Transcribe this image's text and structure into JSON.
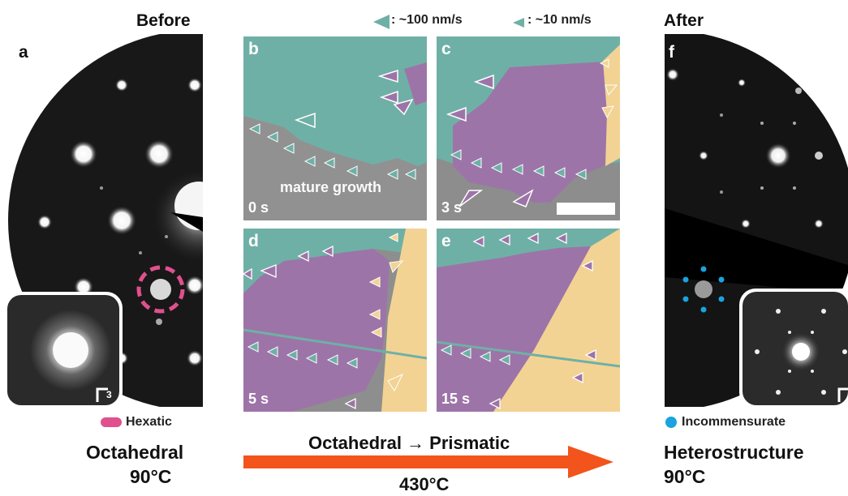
{
  "left": {
    "header": "Before",
    "panel_letter": "a",
    "legend_label": "Hexatic",
    "scale_label": "3",
    "phase": "Octahedral",
    "temperature": "90°C"
  },
  "right": {
    "header": "After",
    "panel_letter": "f",
    "legend_label": "Incommensurate",
    "phase": "Heterostructure",
    "temperature": "90°C"
  },
  "speed_legend": {
    "fast": ": ~100 nm/s",
    "slow": ": ~10 nm/s"
  },
  "panels": [
    {
      "letter": "b",
      "time": "0 s",
      "annotation": "mature growth"
    },
    {
      "letter": "c",
      "time": "3 s"
    },
    {
      "letter": "d",
      "time": "5 s"
    },
    {
      "letter": "e",
      "time": "15 s"
    }
  ],
  "transition": {
    "label": "Octahedral → Prismatic",
    "temperature": "430°C"
  },
  "colors": {
    "teal": "#6fb0a6",
    "purple": "#9d74a8",
    "yellow": "#f2d394",
    "magenta": "#e0508e",
    "blue": "#1aa3de",
    "arrow": "#f2541b"
  }
}
